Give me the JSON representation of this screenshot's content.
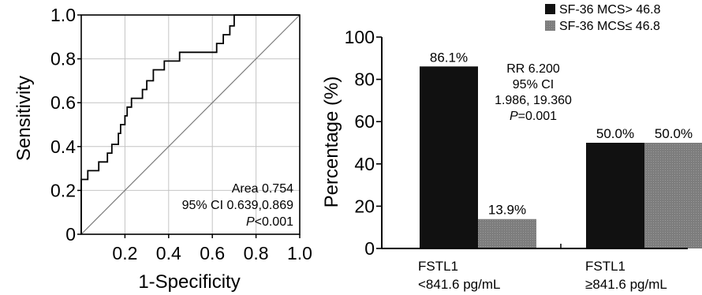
{
  "chart_data": [
    {
      "type": "line",
      "title": "",
      "xlabel": "1-Specificity",
      "ylabel": "Sensitivity",
      "xlim": [
        0,
        1
      ],
      "ylim": [
        0,
        1
      ],
      "x_ticks": [
        "0.2",
        "0.4",
        "0.6",
        "0.8",
        "1.0"
      ],
      "y_ticks": [
        "0",
        "0.2",
        "0.4",
        "0.6",
        "0.8",
        "1.0"
      ],
      "grid": true,
      "series": [
        {
          "kind": "roc-step",
          "points": [
            [
              0,
              0
            ],
            [
              0,
              0.25
            ],
            [
              0.03,
              0.25
            ],
            [
              0.03,
              0.29
            ],
            [
              0.08,
              0.29
            ],
            [
              0.08,
              0.33
            ],
            [
              0.12,
              0.33
            ],
            [
              0.12,
              0.37
            ],
            [
              0.14,
              0.37
            ],
            [
              0.14,
              0.41
            ],
            [
              0.17,
              0.41
            ],
            [
              0.17,
              0.46
            ],
            [
              0.18,
              0.46
            ],
            [
              0.18,
              0.5
            ],
            [
              0.2,
              0.5
            ],
            [
              0.2,
              0.54
            ],
            [
              0.21,
              0.54
            ],
            [
              0.21,
              0.58
            ],
            [
              0.23,
              0.58
            ],
            [
              0.23,
              0.62
            ],
            [
              0.28,
              0.62
            ],
            [
              0.28,
              0.66
            ],
            [
              0.3,
              0.66
            ],
            [
              0.3,
              0.7
            ],
            [
              0.33,
              0.7
            ],
            [
              0.33,
              0.75
            ],
            [
              0.38,
              0.75
            ],
            [
              0.38,
              0.79
            ],
            [
              0.45,
              0.79
            ],
            [
              0.45,
              0.83
            ],
            [
              0.62,
              0.83
            ],
            [
              0.62,
              0.87
            ],
            [
              0.65,
              0.87
            ],
            [
              0.65,
              0.91
            ],
            [
              0.68,
              0.91
            ],
            [
              0.68,
              0.95
            ],
            [
              0.7,
              0.95
            ],
            [
              0.7,
              1.0
            ],
            [
              1.0,
              1.0
            ]
          ]
        },
        {
          "kind": "reference-diagonal",
          "points": [
            [
              0,
              0
            ],
            [
              1,
              1
            ]
          ]
        }
      ],
      "annotation": [
        "Area 0.754",
        "95% CI 0.639,0.869",
        "P<0.001"
      ]
    },
    {
      "type": "bar",
      "title": "",
      "xlabel": "",
      "ylabel": "Percentage (%)",
      "ylim": [
        0,
        100
      ],
      "y_ticks": [
        "0",
        "20",
        "40",
        "60",
        "80",
        "100"
      ],
      "grid": false,
      "legend_position": "top-right",
      "categories": [
        [
          "FSTL1",
          "<841.6 pg/mL"
        ],
        [
          "FSTL1",
          "≥841.6 pg/mL"
        ]
      ],
      "series": [
        {
          "name": "SF-36 MCS> 46.8",
          "color": "#111111",
          "values": [
            86.1,
            50.0
          ],
          "labels": [
            "86.1%",
            "50.0%"
          ]
        },
        {
          "name": "SF-36 MCS≤ 46.8",
          "color": "#808080",
          "values": [
            13.9,
            50.0
          ],
          "labels": [
            "13.9%",
            "50.0%"
          ]
        }
      ],
      "annotation": [
        "RR 6.200",
        "95% CI",
        "1.986, 19.360",
        "P=0.001"
      ]
    }
  ]
}
